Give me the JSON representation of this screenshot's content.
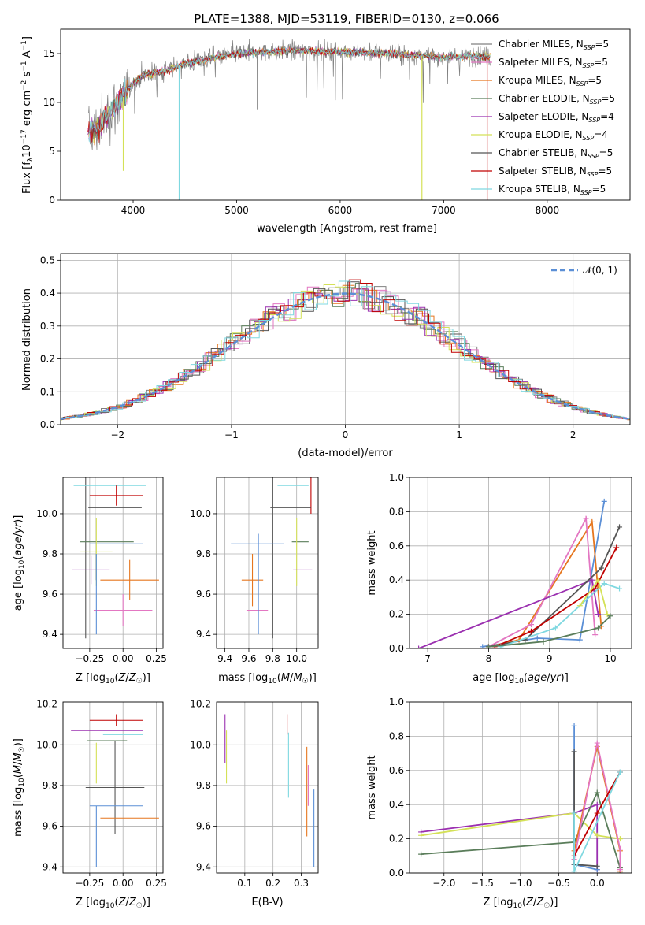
{
  "figure_title": "PLATE=1388, MJD=53119, FIBERID=0130, z=0.066",
  "chart_data": [
    {
      "id": "spectrum",
      "type": "line",
      "title": "PLATE=1388, MJD=53119, FIBERID=0130, z=0.066",
      "xlabel": "wavelength [Angstrom, rest frame]",
      "ylabel": "Flux [f_λ 10^-17 erg cm^-2 s^-1 A^-1]",
      "xlim": [
        3300,
        8800
      ],
      "ylim": [
        0,
        17.5
      ],
      "xticks": [
        4000,
        5000,
        6000,
        7000,
        8000
      ],
      "yticks": [
        0,
        5,
        10,
        15
      ],
      "grid": false,
      "legend_position": "upper-right",
      "series": [
        {
          "name": "Chabrier MILES, N_SSP=5",
          "color": "#808080"
        },
        {
          "name": "Salpeter MILES, N_SSP=5",
          "color": "#e377c2"
        },
        {
          "name": "Kroupa MILES, N_SSP=5",
          "color": "#e6761e"
        },
        {
          "name": "Chabrier ELODIE, N_SSP=5",
          "color": "#5a7d5a"
        },
        {
          "name": "Salpeter ELODIE, N_SSP=4",
          "color": "#9b30b0"
        },
        {
          "name": "Kroupa ELODIE, N_SSP=4",
          "color": "#d4e157"
        },
        {
          "name": "Chabrier STELIB, N_SSP=5",
          "color": "#555555"
        },
        {
          "name": "Salpeter STELIB, N_SSP=5",
          "color": "#c00000"
        },
        {
          "name": "Kroupa STELIB, N_SSP=5",
          "color": "#7fd8e0"
        }
      ],
      "continuum": {
        "x": [
          3550,
          3650,
          3800,
          3900,
          4000,
          4100,
          4300,
          4500,
          4800,
          5000,
          5500,
          6000,
          6500,
          7000,
          7300,
          7500
        ],
        "y": [
          7.0,
          7.2,
          9.5,
          10.5,
          12.0,
          12.8,
          13.2,
          14.0,
          14.6,
          15.0,
          15.3,
          15.2,
          15.0,
          14.6,
          14.8,
          14.6
        ]
      }
    },
    {
      "id": "residuals",
      "type": "line",
      "xlabel": "(data-model)/error",
      "ylabel": "Normed distribution",
      "xlim": [
        -2.5,
        2.5
      ],
      "ylim": [
        0,
        0.52
      ],
      "xticks": [
        -2,
        -1,
        0,
        1,
        2
      ],
      "yticks": [
        0.0,
        0.1,
        0.2,
        0.3,
        0.4,
        0.5
      ],
      "grid": true,
      "legend_position": "upper-right",
      "reference": {
        "name": "𝒩(0, 1)",
        "mean": 0,
        "sigma": 1,
        "color": "#5b8fd6"
      }
    },
    {
      "id": "age-vs-Z",
      "type": "scatter",
      "xlabel": "Z [log10(Z/Z☉)]",
      "ylabel": "age [log10(age/yr)]",
      "xlim": [
        -0.45,
        0.3
      ],
      "ylim": [
        9.33,
        10.18
      ],
      "xticks": [
        -0.25,
        0.0,
        0.25
      ],
      "yticks": [
        9.4,
        9.6,
        9.8,
        10.0
      ],
      "grid": true,
      "points": [
        {
          "x": -0.28,
          "y": 10.03,
          "xerr": 0.0,
          "yerr": 0.65,
          "color": "#555555"
        },
        {
          "x": -0.21,
          "y": 10.02,
          "xerr": 0.0,
          "yerr": 0.35,
          "color": "#808080"
        },
        {
          "x": -0.1,
          "y": 10.14,
          "xerr": 0.27,
          "yerr": 0.0,
          "color": "#7fd8e0"
        },
        {
          "x": -0.05,
          "y": 10.09,
          "xerr": 0.2,
          "yerr": 0.05,
          "color": "#c00000"
        },
        {
          "x": -0.06,
          "y": 10.03,
          "xerr": 0.2,
          "yerr": 0.0,
          "color": "#555555"
        },
        {
          "x": -0.12,
          "y": 9.86,
          "xerr": 0.2,
          "yerr": 0.0,
          "color": "#5a7d5a"
        },
        {
          "x": -0.05,
          "y": 9.85,
          "xerr": 0.2,
          "yerr": 0.0,
          "color": "#5b8fd6"
        },
        {
          "x": -0.2,
          "y": 9.81,
          "xerr": 0.12,
          "yerr": 0.17,
          "color": "#d4e157"
        },
        {
          "x": -0.24,
          "y": 9.72,
          "xerr": 0.14,
          "yerr": 0.07,
          "color": "#9b30b0"
        },
        {
          "x": 0.05,
          "y": 9.67,
          "xerr": 0.22,
          "yerr": 0.1,
          "color": "#e6761e"
        },
        {
          "x": 0.0,
          "y": 9.52,
          "xerr": 0.22,
          "yerr": 0.08,
          "color": "#e377c2"
        },
        {
          "x": -0.2,
          "y": 9.6,
          "xerr": 0.0,
          "yerr": 0.2,
          "color": "#5b8fd6"
        }
      ]
    },
    {
      "id": "age-vs-mass",
      "type": "scatter",
      "xlabel": "mass [log10(M/M☉)]",
      "ylabel": "",
      "xlim": [
        9.33,
        10.18
      ],
      "ylim": [
        9.33,
        10.18
      ],
      "xticks": [
        9.4,
        9.6,
        9.8,
        10.0
      ],
      "yticks": [
        9.4,
        9.6,
        9.8,
        10.0
      ],
      "grid": true,
      "points": [
        {
          "x": 9.8,
          "y": 10.03,
          "xerr": 0.0,
          "yerr": 0.65,
          "color": "#555555"
        },
        {
          "x": 9.97,
          "y": 10.14,
          "xerr": 0.13,
          "yerr": 0.0,
          "color": "#7fd8e0"
        },
        {
          "x": 10.12,
          "y": 10.09,
          "xerr": 0.0,
          "yerr": 0.09,
          "color": "#c00000"
        },
        {
          "x": 9.95,
          "y": 10.03,
          "xerr": 0.17,
          "yerr": 0.0,
          "color": "#555555"
        },
        {
          "x": 9.67,
          "y": 9.85,
          "xerr": 0.22,
          "yerr": 0.0,
          "color": "#5b8fd6"
        },
        {
          "x": 10.03,
          "y": 9.86,
          "xerr": 0.07,
          "yerr": 0.0,
          "color": "#5a7d5a"
        },
        {
          "x": 10.0,
          "y": 9.81,
          "xerr": 0.0,
          "yerr": 0.17,
          "color": "#d4e157"
        },
        {
          "x": 10.05,
          "y": 9.72,
          "xerr": 0.08,
          "yerr": 0.0,
          "color": "#9b30b0"
        },
        {
          "x": 9.63,
          "y": 9.67,
          "xerr": 0.09,
          "yerr": 0.13,
          "color": "#e6761e"
        },
        {
          "x": 9.67,
          "y": 9.52,
          "xerr": 0.09,
          "yerr": 0.0,
          "color": "#e377c2"
        },
        {
          "x": 9.68,
          "y": 9.65,
          "xerr": 0.0,
          "yerr": 0.25,
          "color": "#5b8fd6"
        }
      ]
    },
    {
      "id": "weight-vs-age",
      "type": "line",
      "xlabel": "age [log10(age/yr)]",
      "ylabel": "mass weight",
      "xlim": [
        6.7,
        10.35
      ],
      "ylim": [
        0,
        1.0
      ],
      "xticks": [
        7,
        8,
        9,
        10
      ],
      "yticks": [
        0.0,
        0.2,
        0.4,
        0.6,
        0.8,
        1.0
      ],
      "grid": true,
      "series": [
        {
          "color": "#5b8fd6",
          "x": [
            7.9,
            8.8,
            9.5,
            9.9
          ],
          "y": [
            0.01,
            0.06,
            0.05,
            0.86
          ]
        },
        {
          "color": "#e6761e",
          "x": [
            8.0,
            8.5,
            9.7,
            9.85
          ],
          "y": [
            0.01,
            0.05,
            0.74,
            0.13
          ]
        },
        {
          "color": "#e377c2",
          "x": [
            8.0,
            8.7,
            9.6,
            9.75
          ],
          "y": [
            0.01,
            0.14,
            0.76,
            0.08
          ]
        },
        {
          "color": "#9b30b0",
          "x": [
            6.85,
            9.7,
            9.8
          ],
          "y": [
            0.0,
            0.4,
            0.2
          ]
        },
        {
          "color": "#555555",
          "x": [
            8.0,
            8.6,
            9.85,
            10.15
          ],
          "y": [
            0.01,
            0.05,
            0.47,
            0.71
          ]
        },
        {
          "color": "#c00000",
          "x": [
            8.1,
            8.7,
            9.75,
            10.1
          ],
          "y": [
            0.01,
            0.1,
            0.35,
            0.59
          ]
        },
        {
          "color": "#7fd8e0",
          "x": [
            8.2,
            9.1,
            9.9,
            10.15
          ],
          "y": [
            0.01,
            0.12,
            0.38,
            0.35
          ]
        },
        {
          "color": "#d4e157",
          "x": [
            9.5,
            9.8,
            9.95
          ],
          "y": [
            0.25,
            0.4,
            0.2
          ]
        },
        {
          "color": "#5a7d5a",
          "x": [
            8.0,
            8.9,
            9.8,
            10.0
          ],
          "y": [
            0.01,
            0.04,
            0.12,
            0.19
          ]
        }
      ]
    },
    {
      "id": "mass-vs-Z",
      "type": "scatter",
      "xlabel": "Z [log10(Z/Z☉)]",
      "ylabel": "mass [log10(M/M☉)]",
      "xlim": [
        -0.45,
        0.3
      ],
      "ylim": [
        9.37,
        10.21
      ],
      "xticks": [
        -0.25,
        0.0,
        0.25
      ],
      "yticks": [
        9.4,
        9.6,
        9.8,
        10.0,
        10.2
      ],
      "grid": true,
      "points": [
        {
          "x": -0.05,
          "y": 10.12,
          "xerr": 0.2,
          "yerr": 0.03,
          "color": "#c00000"
        },
        {
          "x": -0.12,
          "y": 10.07,
          "xerr": 0.27,
          "yerr": 0.0,
          "color": "#9b30b0"
        },
        {
          "x": -0.12,
          "y": 10.02,
          "xerr": 0.15,
          "yerr": 0.0,
          "color": "#5a7d5a"
        },
        {
          "x": 0.0,
          "y": 10.05,
          "xerr": 0.15,
          "yerr": 0.0,
          "color": "#7fd8e0"
        },
        {
          "x": -0.06,
          "y": 9.79,
          "xerr": 0.22,
          "yerr": 0.23,
          "color": "#555555"
        },
        {
          "x": -0.2,
          "y": 9.91,
          "xerr": 0.0,
          "yerr": 0.1,
          "color": "#d4e157"
        },
        {
          "x": -0.05,
          "y": 9.7,
          "xerr": 0.2,
          "yerr": 0.0,
          "color": "#5b8fd6"
        },
        {
          "x": -0.05,
          "y": 9.67,
          "xerr": 0.27,
          "yerr": 0.0,
          "color": "#e377c2"
        },
        {
          "x": 0.05,
          "y": 9.64,
          "xerr": 0.22,
          "yerr": 0.0,
          "color": "#e6761e"
        },
        {
          "x": -0.2,
          "y": 9.55,
          "xerr": 0.0,
          "yerr": 0.15,
          "color": "#5b8fd6"
        }
      ]
    },
    {
      "id": "mass-vs-EBV",
      "type": "scatter",
      "xlabel": "E(B-V)",
      "ylabel": "",
      "xlim": [
        0.0,
        0.36
      ],
      "ylim": [
        9.37,
        10.21
      ],
      "xticks": [
        0.1,
        0.2,
        0.3
      ],
      "yticks": [
        9.4,
        9.6,
        9.8,
        10.0,
        10.2
      ],
      "grid": true,
      "points": [
        {
          "x": 0.03,
          "y": 10.03,
          "xerr": 0.0,
          "yerr": 0.12,
          "color": "#9b30b0"
        },
        {
          "x": 0.035,
          "y": 9.94,
          "xerr": 0.0,
          "yerr": 0.13,
          "color": "#d4e157"
        },
        {
          "x": 0.25,
          "y": 10.1,
          "xerr": 0.0,
          "yerr": 0.05,
          "color": "#c00000"
        },
        {
          "x": 0.255,
          "y": 9.9,
          "xerr": 0.0,
          "yerr": 0.16,
          "color": "#7fd8e0"
        },
        {
          "x": 0.32,
          "y": 9.77,
          "xerr": 0.0,
          "yerr": 0.22,
          "color": "#e6761e"
        },
        {
          "x": 0.325,
          "y": 9.8,
          "xerr": 0.0,
          "yerr": 0.1,
          "color": "#e377c2"
        },
        {
          "x": 0.345,
          "y": 9.59,
          "xerr": 0.0,
          "yerr": 0.19,
          "color": "#5b8fd6"
        }
      ]
    },
    {
      "id": "weight-vs-Z",
      "type": "line",
      "xlabel": "Z [log10(Z/Z☉)]",
      "ylabel": "mass weight",
      "xlim": [
        -2.45,
        0.45
      ],
      "ylim": [
        0,
        1.0
      ],
      "xticks": [
        -2.0,
        -1.5,
        -1.0,
        -0.5,
        0.0
      ],
      "yticks": [
        0.0,
        0.2,
        0.4,
        0.6,
        0.8,
        1.0
      ],
      "grid": true,
      "series": [
        {
          "color": "#9b30b0",
          "x": [
            -2.3,
            -0.3,
            0.0,
            0.0
          ],
          "y": [
            0.24,
            0.35,
            0.4,
            0.02
          ]
        },
        {
          "color": "#d4e157",
          "x": [
            -2.3,
            -0.3,
            0.0,
            0.3
          ],
          "y": [
            0.22,
            0.35,
            0.22,
            0.2
          ]
        },
        {
          "color": "#5a7d5a",
          "x": [
            -2.3,
            -0.3,
            0.0,
            0.3,
            0.3
          ],
          "y": [
            0.11,
            0.18,
            0.47,
            0.03,
            0.0
          ]
        },
        {
          "color": "#5b8fd6",
          "x": [
            -0.3,
            -0.3,
            0.0
          ],
          "y": [
            0.86,
            0.05,
            0.02
          ]
        },
        {
          "color": "#555555",
          "x": [
            -0.3,
            -0.3,
            0.0
          ],
          "y": [
            0.71,
            0.05,
            0.04
          ]
        },
        {
          "color": "#e6761e",
          "x": [
            -0.3,
            0.0,
            0.3,
            0.3
          ],
          "y": [
            0.13,
            0.74,
            0.13,
            0.01
          ]
        },
        {
          "color": "#e377c2",
          "x": [
            -0.3,
            0.0,
            0.3,
            0.3
          ],
          "y": [
            0.08,
            0.76,
            0.14,
            0.02
          ]
        },
        {
          "color": "#c00000",
          "x": [
            -0.3,
            0.0,
            0.3
          ],
          "y": [
            0.1,
            0.35,
            0.59
          ]
        },
        {
          "color": "#7fd8e0",
          "x": [
            -0.3,
            -0.3,
            0.3
          ],
          "y": [
            0.35,
            0.01,
            0.59
          ]
        }
      ]
    }
  ]
}
